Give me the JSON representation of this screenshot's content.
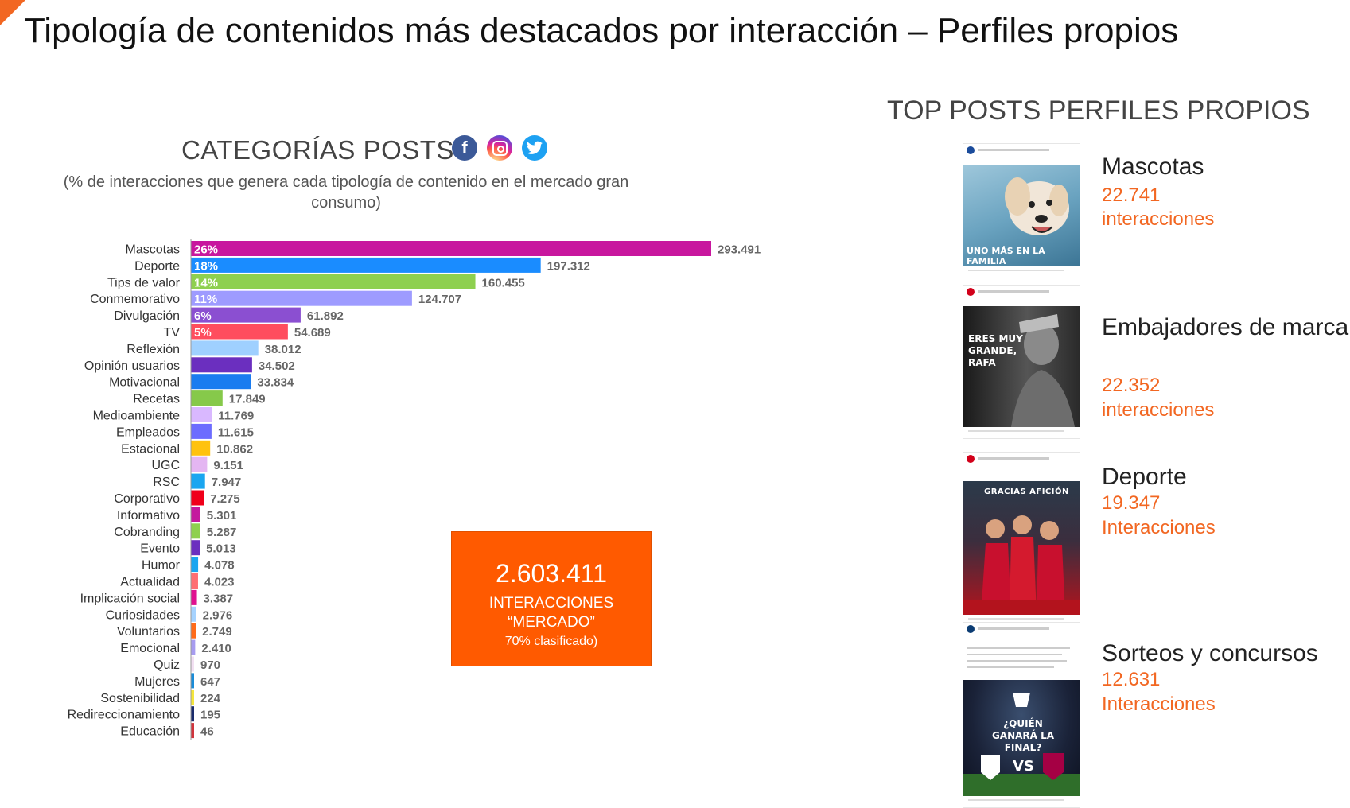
{
  "title": "Tipología de contenidos más destacados por interacción – Perfiles propios",
  "left_panel": {
    "heading": "CATEGORÍAS POSTS",
    "subtitle": "(% de interacciones que genera cada tipología de contenido en el mercado gran consumo)",
    "icons": [
      "facebook-icon",
      "instagram-icon",
      "twitter-icon"
    ]
  },
  "chart_data": {
    "type": "bar",
    "orientation": "horizontal",
    "categories": [
      "Mascotas",
      "Deporte",
      "Tips de valor",
      "Conmemorativo",
      "Divulgación",
      "TV",
      "Reflexión",
      "Opinión usuarios",
      "Motivacional",
      "Recetas",
      "Medioambiente",
      "Empleados",
      "Estacional",
      "UGC",
      "RSC",
      "Corporativo",
      "Informativo",
      "Cobranding",
      "Evento",
      "Humor",
      "Actualidad",
      "Implicación social",
      "Curiosidades",
      "Voluntarios",
      "Emocional",
      "Quiz",
      "Mujeres",
      "Sostenibilidad",
      "Redireccionamiento",
      "Educación"
    ],
    "values": [
      293491,
      197312,
      160455,
      124707,
      61892,
      54689,
      38012,
      34502,
      33834,
      17849,
      11769,
      11615,
      10862,
      9151,
      7947,
      7275,
      5301,
      5287,
      5013,
      4078,
      4023,
      3387,
      2976,
      2749,
      2410,
      970,
      647,
      224,
      195,
      46
    ],
    "value_labels": [
      "293.491",
      "197.312",
      "160.455",
      "124.707",
      "61.892",
      "54.689",
      "38.012",
      "34.502",
      "33.834",
      "17.849",
      "11.769",
      "11.615",
      "10.862",
      "9.151",
      "7.947",
      "7.275",
      "5.301",
      "5.287",
      "5.013",
      "4.078",
      "4.023",
      "3.387",
      "2.976",
      "2.749",
      "2.410",
      "970",
      "647",
      "224",
      "195",
      "46"
    ],
    "percent_labels": [
      "26%",
      "18%",
      "14%",
      "11%",
      "6%",
      "5%"
    ],
    "colors": [
      "#c8179e",
      "#1a8cff",
      "#8ed04f",
      "#9e9bff",
      "#8b4fd1",
      "#ff4d5e",
      "#9fd0ff",
      "#6b2fbf",
      "#1a7cf0",
      "#86c94a",
      "#d9b8ff",
      "#6c6cff",
      "#ffc20e",
      "#e4b6f2",
      "#1aa6f0",
      "#f0001a",
      "#c4199e",
      "#8ed04f",
      "#6b2fbf",
      "#1aa6f0",
      "#ff6e73",
      "#e0128f",
      "#a6d3ff",
      "#ff6b1a",
      "#a79cf0",
      "#f2e0f2",
      "#1a8cd8",
      "#f5e63c",
      "#1a2b6b",
      "#d0343c"
    ]
  },
  "total_box": {
    "value": "2.603.411",
    "line1": "INTERACCIONES",
    "line2": "“MERCADO”",
    "line3": "70% clasificado)"
  },
  "top_posts": {
    "heading": "TOP POSTS PERFILES PROPIOS",
    "items": [
      {
        "category": "Mascotas",
        "value": "22.741",
        "label": "interacciones",
        "image_text": "UNO MÁS EN LA FAMILIA"
      },
      {
        "category": "Embajadores de marca",
        "value": "22.352",
        "label": "interacciones",
        "image_text": "ERES MUY GRANDE, RAFA"
      },
      {
        "category": "Deporte",
        "value": "19.347",
        "label": "Interacciones",
        "image_text": "GRACIAS AFICIÓN"
      },
      {
        "category": "Sorteos y concursos",
        "value": "12.631",
        "label": "Interacciones",
        "image_text": "¿QUIÉN GANARÁ LA FINAL?"
      }
    ]
  }
}
